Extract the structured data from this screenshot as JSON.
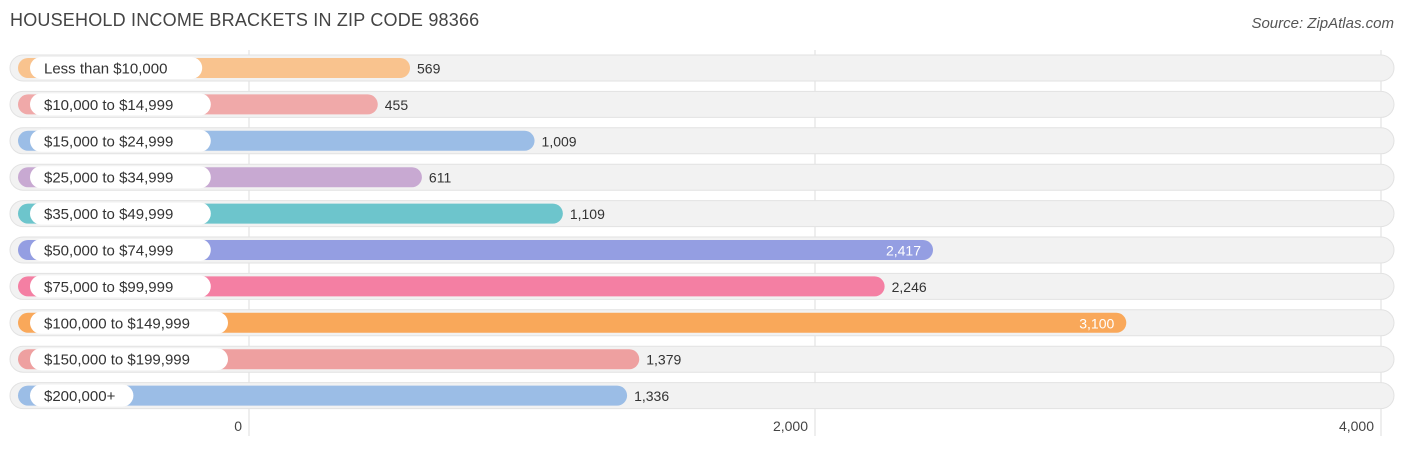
{
  "title": "HOUSEHOLD INCOME BRACKETS IN ZIP CODE 98366",
  "source": "Source: ZipAtlas.com",
  "chart_data": {
    "type": "bar",
    "orientation": "horizontal",
    "title": "HOUSEHOLD INCOME BRACKETS IN ZIP CODE 98366",
    "categories": [
      "Less than $10,000",
      "$10,000 to $14,999",
      "$15,000 to $24,999",
      "$25,000 to $34,999",
      "$35,000 to $49,999",
      "$50,000 to $74,999",
      "$75,000 to $99,999",
      "$100,000 to $149,999",
      "$150,000 to $199,999",
      "$200,000+"
    ],
    "values": [
      569,
      455,
      1009,
      611,
      1109,
      2417,
      2246,
      3100,
      1379,
      1336
    ],
    "value_labels": [
      "569",
      "455",
      "1,009",
      "611",
      "1,109",
      "2,417",
      "2,246",
      "3,100",
      "1,379",
      "1,336"
    ],
    "colors": [
      "#f9c38e",
      "#f0a9a9",
      "#9bbde6",
      "#c8a9d2",
      "#6dc5cc",
      "#949ee2",
      "#f47fa3",
      "#f9a85a",
      "#eea0a0",
      "#9bbde6"
    ],
    "xlim": [
      0,
      4000
    ],
    "xticks": [
      0,
      2000,
      4000
    ],
    "xtick_labels": [
      "0",
      "2,000",
      "4,000"
    ],
    "xlabel": "",
    "ylabel": "",
    "grid": true
  }
}
